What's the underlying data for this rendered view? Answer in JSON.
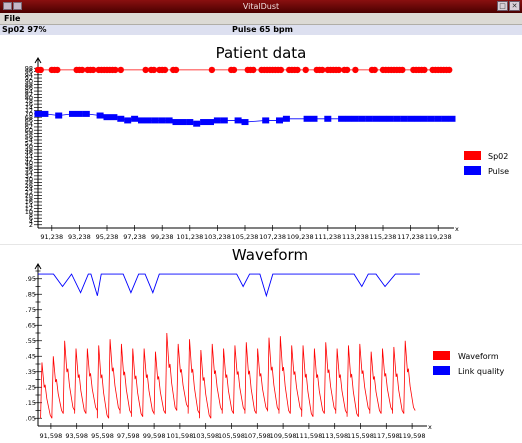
{
  "window": {
    "title": "VitalDust"
  },
  "menu": {
    "file": "File"
  },
  "status": {
    "spo2": "Sp02 97%",
    "pulse": "Pulse 65 bpm"
  },
  "colors": {
    "spo2": "#ff0000",
    "pulse": "#0000ff",
    "waveform": "#ff0000",
    "link": "#0000ff"
  },
  "chart_data": [
    {
      "type": "scatter",
      "title": "Patient data",
      "xlim": [
        90238,
        120238
      ],
      "ylim": [
        0,
        100
      ],
      "x_ticks": [
        "91,238",
        "93,238",
        "95,238",
        "97,238",
        "99,238",
        "101,238",
        "103,238",
        "105,238",
        "107,238",
        "109,238",
        "111,238",
        "113,238",
        "115,238",
        "117,238",
        "119,238"
      ],
      "y_ticks": [
        2,
        4,
        6,
        8,
        10,
        12,
        14,
        16,
        18,
        20,
        22,
        24,
        26,
        28,
        30,
        32,
        34,
        36,
        38,
        40,
        42,
        44,
        46,
        48,
        50,
        52,
        54,
        56,
        58,
        60,
        62,
        64,
        66,
        68,
        70,
        72,
        74,
        76,
        78,
        80,
        82,
        84,
        86,
        88,
        90,
        92,
        94,
        96,
        98
      ],
      "axis_end_label": "x",
      "series": [
        {
          "name": "Sp02",
          "marker": "circle",
          "x_start": 90238,
          "x_step": 200,
          "y": [
            97,
            97,
            97,
            97,
            97,
            97,
            97,
            97,
            97,
            97,
            97,
            97,
            97,
            97,
            97,
            97,
            97,
            97,
            97,
            97,
            97,
            97,
            97,
            97,
            97,
            97,
            97,
            97,
            97,
            97,
            97,
            97,
            97,
            97,
            97,
            97,
            97,
            97,
            97,
            97,
            97,
            97,
            97,
            97,
            97,
            97,
            97,
            97,
            97,
            97,
            97,
            97,
            97,
            97,
            97,
            97,
            97,
            97,
            97,
            97,
            97,
            97,
            97,
            97,
            97,
            97,
            97,
            97,
            97,
            97,
            97,
            97,
            97,
            97,
            97,
            97,
            97,
            97,
            97,
            97,
            97,
            97,
            97,
            97,
            97,
            97,
            97,
            97,
            97,
            97,
            97,
            97,
            97,
            97,
            97,
            97,
            97,
            97,
            97,
            97,
            97,
            97,
            97,
            97,
            97,
            97,
            97,
            97,
            97,
            97,
            97,
            97,
            97,
            97,
            97,
            97,
            97,
            97,
            97,
            97,
            97,
            97,
            97,
            97,
            97,
            97,
            97,
            97,
            97,
            97,
            97,
            97,
            97,
            97,
            97,
            97,
            97,
            97,
            97,
            97,
            97,
            97,
            97,
            97,
            97,
            97,
            97,
            97,
            97,
            97
          ],
          "present": [
            1,
            1,
            0,
            0,
            0,
            1,
            1,
            1,
            0,
            0,
            0,
            0,
            0,
            0,
            1,
            1,
            1,
            0,
            1,
            1,
            1,
            0,
            1,
            1,
            1,
            1,
            1,
            1,
            1,
            0,
            1,
            0,
            0,
            0,
            0,
            0,
            0,
            0,
            0,
            1,
            0,
            1,
            1,
            0,
            1,
            1,
            1,
            0,
            0,
            1,
            1,
            0,
            0,
            0,
            0,
            0,
            0,
            0,
            0,
            0,
            0,
            0,
            0,
            1,
            0,
            0,
            0,
            0,
            0,
            0,
            1,
            1,
            0,
            0,
            0,
            0,
            1,
            1,
            1,
            0,
            0,
            1,
            1,
            1,
            1,
            1,
            1,
            1,
            1,
            0,
            0,
            1,
            1,
            1,
            1,
            0,
            0,
            1,
            0,
            0,
            0,
            1,
            1,
            1,
            0,
            1,
            1,
            1,
            1,
            1,
            0,
            1,
            1,
            0,
            0,
            1,
            0,
            0,
            0,
            0,
            0,
            1,
            1,
            0,
            0,
            1,
            1,
            1,
            1,
            1,
            1,
            1,
            1,
            0,
            0,
            0,
            1,
            1,
            1,
            1,
            1,
            0,
            0,
            1,
            1,
            1,
            1,
            1,
            1,
            1
          ]
        },
        {
          "name": "Pulse",
          "marker": "square",
          "x_start": 90238,
          "x_step": 500,
          "y": [
            70,
            70,
            70,
            69,
            70,
            70,
            70,
            70,
            70,
            69,
            68,
            68,
            67,
            66,
            67,
            66,
            66,
            66,
            66,
            66,
            65,
            65,
            65,
            64,
            65,
            65,
            66,
            66,
            66,
            66,
            65,
            66,
            66,
            66,
            66,
            66,
            67,
            67,
            67,
            67,
            67,
            67,
            67,
            67,
            67,
            67,
            67,
            67,
            67,
            67,
            67,
            67,
            67,
            67,
            67,
            67,
            67,
            67,
            67,
            67,
            67
          ],
          "present": [
            1,
            1,
            0,
            1,
            0,
            1,
            1,
            1,
            0,
            1,
            1,
            1,
            1,
            1,
            1,
            1,
            1,
            1,
            1,
            1,
            1,
            1,
            1,
            1,
            1,
            1,
            1,
            1,
            0,
            1,
            1,
            0,
            0,
            1,
            0,
            1,
            1,
            0,
            0,
            1,
            1,
            0,
            1,
            0,
            1,
            1,
            1,
            1,
            1,
            1,
            1,
            1,
            1,
            1,
            1,
            1,
            1,
            1,
            1,
            1,
            1
          ]
        }
      ],
      "legend": [
        {
          "label": "Sp02"
        },
        {
          "label": "Pulse"
        }
      ],
      "legend_position": "right"
    },
    {
      "type": "line",
      "title": "Waveform",
      "xlim": [
        90598,
        120598
      ],
      "ylim": [
        0,
        100
      ],
      "x_ticks": [
        "91,598",
        "93,598",
        "95,598",
        "97,598",
        "99,598",
        "101,598",
        "103,598",
        "105,598",
        "107,598",
        "109,598",
        "111,598",
        "113,598",
        "115,598",
        "117,598",
        "119,598"
      ],
      "y_ticks": [
        "",
        ".95",
        "",
        ".85",
        "",
        ".75",
        "",
        ".65",
        "",
        ".55",
        "",
        ".45",
        "",
        ".35",
        "",
        ".25",
        "",
        ".15",
        "",
        ".05"
      ],
      "axis_end_label": "x",
      "series": [
        {
          "name": "Waveform",
          "cycle_period": 880,
          "peaks": [
            41,
            45,
            55,
            50,
            50,
            52,
            56,
            53,
            50,
            50,
            48,
            60,
            53,
            56,
            49,
            53,
            50,
            52,
            54,
            50,
            57,
            58,
            52,
            52,
            50,
            54,
            50,
            52,
            53,
            48,
            50,
            51,
            55
          ],
          "troughs": [
            5,
            8,
            10,
            8,
            10,
            5,
            10,
            8,
            6,
            8,
            8,
            10,
            12,
            8,
            5,
            10,
            8,
            10,
            8,
            10,
            10,
            8,
            10,
            6,
            8,
            10,
            8,
            6,
            10,
            8,
            10,
            8,
            10
          ]
        },
        {
          "name": "Link quality",
          "x": [
            90598,
            91800,
            92500,
            93200,
            93900,
            94500,
            94700,
            95200,
            95500,
            96100,
            96500,
            97200,
            97800,
            98400,
            98900,
            99500,
            100000,
            100900,
            101400,
            101900,
            102400,
            103000,
            103500,
            104000,
            104500,
            105000,
            106000,
            106500,
            107000,
            107800,
            108300,
            108800,
            109300,
            110000,
            110700,
            111600,
            112200,
            113000,
            113700,
            114400,
            115100,
            115700,
            116200,
            116800,
            117500,
            118300,
            119000,
            119600,
            120200
          ],
          "y": [
            98,
            98,
            90,
            98,
            86,
            98,
            98,
            84,
            98,
            98,
            98,
            98,
            86,
            98,
            98,
            86,
            98,
            98,
            98,
            98,
            98,
            98,
            98,
            98,
            98,
            98,
            98,
            90,
            98,
            98,
            84,
            98,
            98,
            98,
            98,
            98,
            98,
            98,
            98,
            98,
            98,
            90,
            98,
            98,
            90,
            98,
            98,
            98,
            98
          ]
        }
      ],
      "legend": [
        {
          "label": "Waveform"
        },
        {
          "label": "Link quality"
        }
      ],
      "legend_position": "right"
    }
  ]
}
